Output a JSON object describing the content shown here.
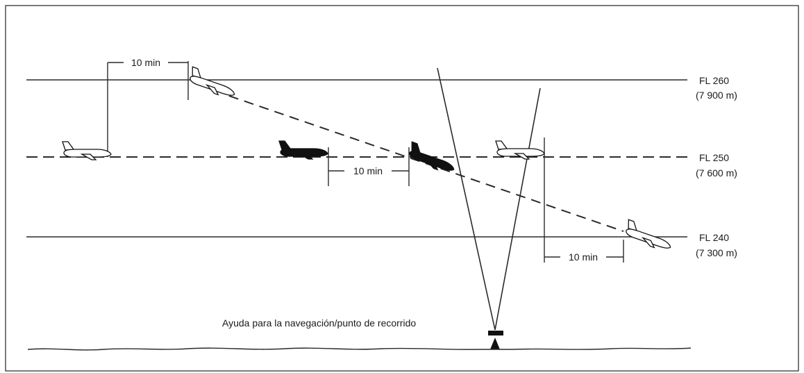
{
  "flight_levels": [
    {
      "level": "FL 260",
      "altitude": "(7 900 m)"
    },
    {
      "level": "FL 250",
      "altitude": "(7 600 m)"
    },
    {
      "level": "FL 240",
      "altitude": "(7 300 m)"
    }
  ],
  "separations": [
    {
      "label": "10 min"
    },
    {
      "label": "10 min"
    },
    {
      "label": "10 min"
    }
  ],
  "navaid_label": "Ayuda para la navegación/punto de recorrido",
  "icons": {
    "aircraft": "aircraft-icon",
    "navaid": "navaid-icon"
  },
  "colors": {
    "line": "#2a2a2a",
    "aircraft_dark": "#111111",
    "aircraft_light": "#ffffff"
  }
}
